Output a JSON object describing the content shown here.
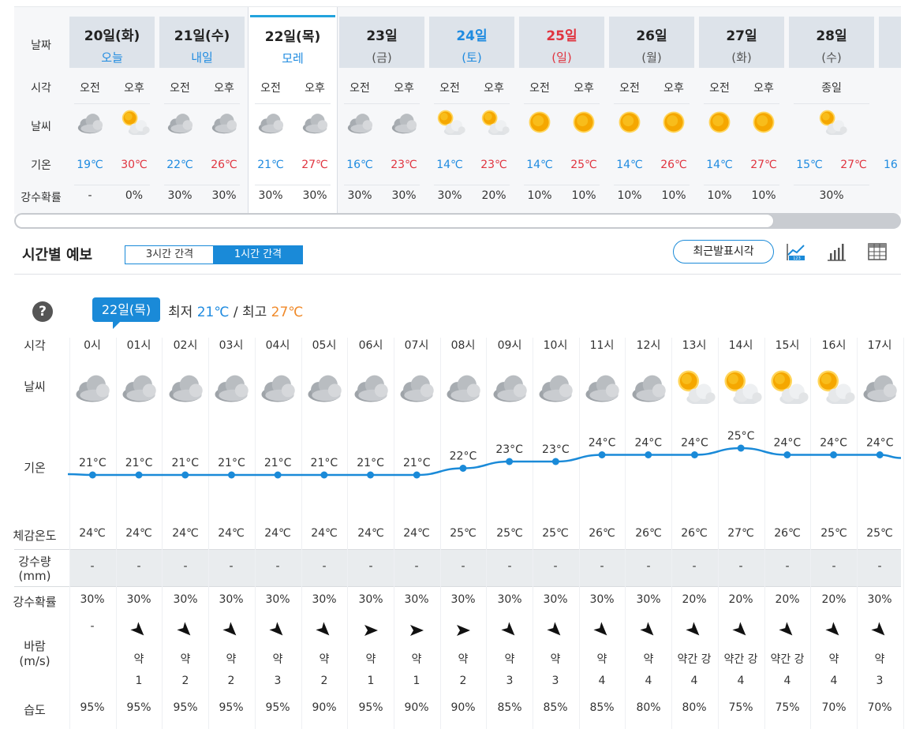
{
  "daily": {
    "row_labels": {
      "date": "날짜",
      "time": "시각",
      "weather": "날씨",
      "temp": "기온",
      "precip": "강수확률"
    },
    "ampm": [
      "오전",
      "오후"
    ],
    "allday_label": "종일",
    "days": [
      {
        "date": "20일(화)",
        "sub": "오늘",
        "sub_style": "blue",
        "date_style": "",
        "icons": [
          "cloudy",
          "partly-sunny"
        ],
        "lo": "19℃",
        "hi": "30℃",
        "pcp": [
          "-",
          "0%"
        ]
      },
      {
        "date": "21일(수)",
        "sub": "내일",
        "sub_style": "blue",
        "date_style": "",
        "icons": [
          "cloudy",
          "cloudy"
        ],
        "lo": "22℃",
        "hi": "26℃",
        "pcp": [
          "30%",
          "30%"
        ]
      },
      {
        "date": "22일(목)",
        "sub": "모레",
        "sub_style": "blue",
        "date_style": "",
        "icons": [
          "cloudy",
          "cloudy"
        ],
        "lo": "21℃",
        "hi": "27℃",
        "pcp": [
          "30%",
          "30%"
        ],
        "selected": true
      },
      {
        "date": "23일",
        "sub": "(금)",
        "sub_style": "",
        "date_style": "",
        "icons": [
          "cloudy",
          "cloudy"
        ],
        "lo": "16℃",
        "hi": "23℃",
        "pcp": [
          "30%",
          "30%"
        ]
      },
      {
        "date": "24일",
        "sub": "(토)",
        "sub_style": "blue",
        "date_style": "blue",
        "icons": [
          "partly-sunny",
          "partly-sunny"
        ],
        "lo": "14℃",
        "hi": "23℃",
        "pcp": [
          "30%",
          "20%"
        ]
      },
      {
        "date": "25일",
        "sub": "(일)",
        "sub_style": "red",
        "date_style": "red",
        "icons": [
          "sunny",
          "sunny"
        ],
        "lo": "14℃",
        "hi": "25℃",
        "pcp": [
          "10%",
          "10%"
        ]
      },
      {
        "date": "26일",
        "sub": "(월)",
        "sub_style": "",
        "date_style": "",
        "icons": [
          "sunny",
          "sunny"
        ],
        "lo": "14℃",
        "hi": "26℃",
        "pcp": [
          "10%",
          "10%"
        ]
      },
      {
        "date": "27일",
        "sub": "(화)",
        "sub_style": "",
        "date_style": "",
        "icons": [
          "sunny",
          "sunny"
        ],
        "lo": "14℃",
        "hi": "27℃",
        "pcp": [
          "10%",
          "10%"
        ]
      },
      {
        "date": "28일",
        "sub": "(수)",
        "sub_style": "",
        "date_style": "",
        "allday": true,
        "icons": [
          "partly-sunny"
        ],
        "lo": "15℃",
        "hi": "27℃",
        "pcp": [
          "30%"
        ]
      },
      {
        "date": "",
        "sub": "",
        "sub_style": "",
        "date_style": "",
        "partial": true,
        "icons": [],
        "lo": "16",
        "hi": "",
        "pcp": []
      }
    ]
  },
  "hourly": {
    "title": "시간별 예보",
    "interval_3h": "3시간 간격",
    "interval_1h": "1시간 간격",
    "latest_button": "최근발표시각",
    "tools": [
      "graph-icon",
      "bar-chart-icon",
      "table-icon"
    ],
    "help": "?",
    "date": "22일(목)",
    "min_label": "최저",
    "min_value": "21℃",
    "sep": "/",
    "max_label": "최고",
    "max_value": "27℃",
    "row_labels": {
      "time": "시각",
      "weather": "날씨",
      "temp": "기온",
      "feels": "체감온도",
      "rain_amount": "강수량",
      "rain_unit": "(mm)",
      "precip": "강수확률",
      "wind": "바람",
      "wind_unit": "(m/s)",
      "humidity": "습도"
    },
    "hours": [
      "0시",
      "01시",
      "02시",
      "03시",
      "04시",
      "05시",
      "06시",
      "07시",
      "08시",
      "09시",
      "10시",
      "11시",
      "12시",
      "13시",
      "14시",
      "15시",
      "16시",
      "17시"
    ],
    "icons": [
      "cloudy",
      "cloudy",
      "cloudy",
      "cloudy",
      "cloudy",
      "cloudy",
      "cloudy",
      "cloudy",
      "cloudy",
      "cloudy",
      "cloudy",
      "cloudy",
      "cloudy",
      "partly-sunny",
      "partly-sunny",
      "partly-sunny",
      "partly-sunny",
      "cloudy"
    ],
    "temps": [
      21,
      21,
      21,
      21,
      21,
      21,
      21,
      21,
      22,
      23,
      23,
      24,
      24,
      24,
      25,
      24,
      24,
      24
    ],
    "temp_unit": "°C",
    "feels": [
      "24℃",
      "24℃",
      "24℃",
      "24℃",
      "24℃",
      "24℃",
      "24℃",
      "24℃",
      "25℃",
      "25℃",
      "25℃",
      "26℃",
      "26℃",
      "26℃",
      "27℃",
      "26℃",
      "25℃",
      "25℃"
    ],
    "rain": [
      "-",
      "-",
      "-",
      "-",
      "-",
      "-",
      "-",
      "-",
      "-",
      "-",
      "-",
      "-",
      "-",
      "-",
      "-",
      "-",
      "-",
      "-"
    ],
    "precip": [
      "30%",
      "30%",
      "30%",
      "30%",
      "30%",
      "30%",
      "30%",
      "30%",
      "30%",
      "30%",
      "30%",
      "30%",
      "30%",
      "20%",
      "20%",
      "20%",
      "20%",
      "30%"
    ],
    "wind_dir_deg": [
      null,
      135,
      135,
      135,
      135,
      135,
      90,
      90,
      90,
      135,
      135,
      135,
      135,
      135,
      135,
      135,
      135,
      135
    ],
    "wind_dir_text": [
      "-",
      "",
      "",
      "",
      "",
      "",
      "",
      "",
      "",
      "",
      "",
      "",
      "",
      "",
      "",
      "",
      "",
      ""
    ],
    "wind_strength": [
      "",
      "약",
      "약",
      "약",
      "약",
      "약",
      "약",
      "약",
      "약",
      "약",
      "약",
      "약",
      "약",
      "약간 강",
      "약간 강",
      "약간 강",
      "약",
      "약"
    ],
    "wind_speed": [
      "",
      "1",
      "2",
      "2",
      "3",
      "2",
      "1",
      "1",
      "2",
      "3",
      "3",
      "4",
      "4",
      "4",
      "4",
      "4",
      "4",
      "3"
    ],
    "humidity": [
      "95%",
      "95%",
      "95%",
      "95%",
      "95%",
      "90%",
      "95%",
      "90%",
      "90%",
      "85%",
      "85%",
      "85%",
      "80%",
      "80%",
      "75%",
      "75%",
      "70%",
      "70%"
    ]
  },
  "colors": {
    "accent": "#1a8ad8",
    "low": "#1f8be0",
    "high": "#e0343f",
    "max": "#f08a2a"
  }
}
